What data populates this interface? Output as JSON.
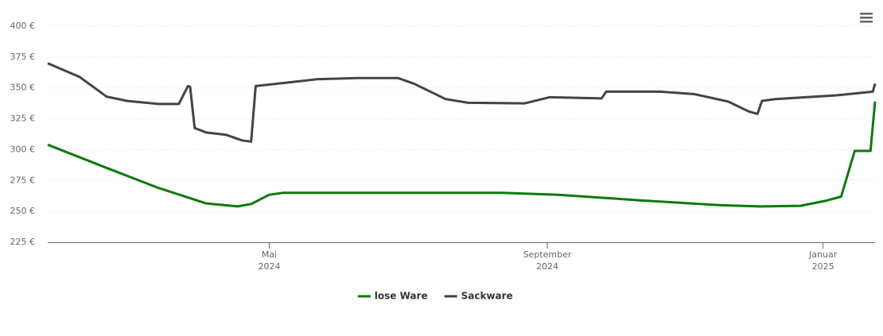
{
  "chart_data": {
    "type": "line",
    "xlim": [
      "2024-01-24",
      "2025-01-24"
    ],
    "xticks": [
      {
        "value": "2024-05-01",
        "label": [
          "Mai",
          "2024"
        ]
      },
      {
        "value": "2024-09-01",
        "label": [
          "September",
          "2024"
        ]
      },
      {
        "value": "2025-01-01",
        "label": [
          "Januar",
          "2025"
        ]
      }
    ],
    "ylim": [
      225,
      400
    ],
    "yticks": [
      {
        "value": 225,
        "label": "225 €"
      },
      {
        "value": 250,
        "label": "250 €"
      },
      {
        "value": 275,
        "label": "275 €"
      },
      {
        "value": 300,
        "label": "300 €"
      },
      {
        "value": 325,
        "label": "325 €"
      },
      {
        "value": 350,
        "label": "350 €"
      },
      {
        "value": 375,
        "label": "375 €"
      },
      {
        "value": 400,
        "label": "400 €"
      }
    ],
    "grid": true,
    "legend": "bottom",
    "series": [
      {
        "name": "lose Ware",
        "color": "#0b7a0b",
        "x": [
          "2024-01-24",
          "2024-02-18",
          "2024-03-13",
          "2024-04-03",
          "2024-04-17",
          "2024-04-23",
          "2024-05-01",
          "2024-05-07",
          "2024-08-12",
          "2024-09-06",
          "2024-10-12",
          "2024-11-17",
          "2024-12-04",
          "2024-12-22",
          "2025-01-02",
          "2025-01-09",
          "2025-01-15",
          "2025-01-22",
          "2025-01-24"
        ],
        "values": [
          304,
          286,
          269,
          256.5,
          254,
          256,
          263.5,
          265,
          265,
          263.5,
          259,
          255,
          254,
          254.5,
          258.5,
          262,
          299,
          299,
          339
        ]
      },
      {
        "name": "Sackware",
        "color": "#434348",
        "x": [
          "2024-01-24",
          "2024-02-07",
          "2024-02-19",
          "2024-02-28",
          "2024-03-13",
          "2024-03-22",
          "2024-03-26",
          "2024-03-27",
          "2024-03-29",
          "2024-04-03",
          "2024-04-12",
          "2024-04-19",
          "2024-04-23",
          "2024-04-25",
          "2024-05-22",
          "2024-06-09",
          "2024-06-27",
          "2024-07-04",
          "2024-07-18",
          "2024-07-28",
          "2024-08-22",
          "2024-09-02",
          "2024-09-25",
          "2024-09-27",
          "2024-10-21",
          "2024-11-05",
          "2024-11-20",
          "2024-11-29",
          "2024-12-03",
          "2024-12-05",
          "2024-12-11",
          "2025-01-07",
          "2025-01-23",
          "2025-01-24"
        ],
        "values": [
          370,
          359,
          343,
          339.5,
          337,
          337,
          351.5,
          351,
          317.5,
          314,
          312,
          307.5,
          306.5,
          351.5,
          357,
          358,
          358,
          353.5,
          341,
          338,
          337.5,
          342.5,
          341.5,
          347,
          347,
          345,
          339,
          331,
          329,
          339.5,
          341,
          344,
          347,
          353.5
        ]
      }
    ]
  }
}
